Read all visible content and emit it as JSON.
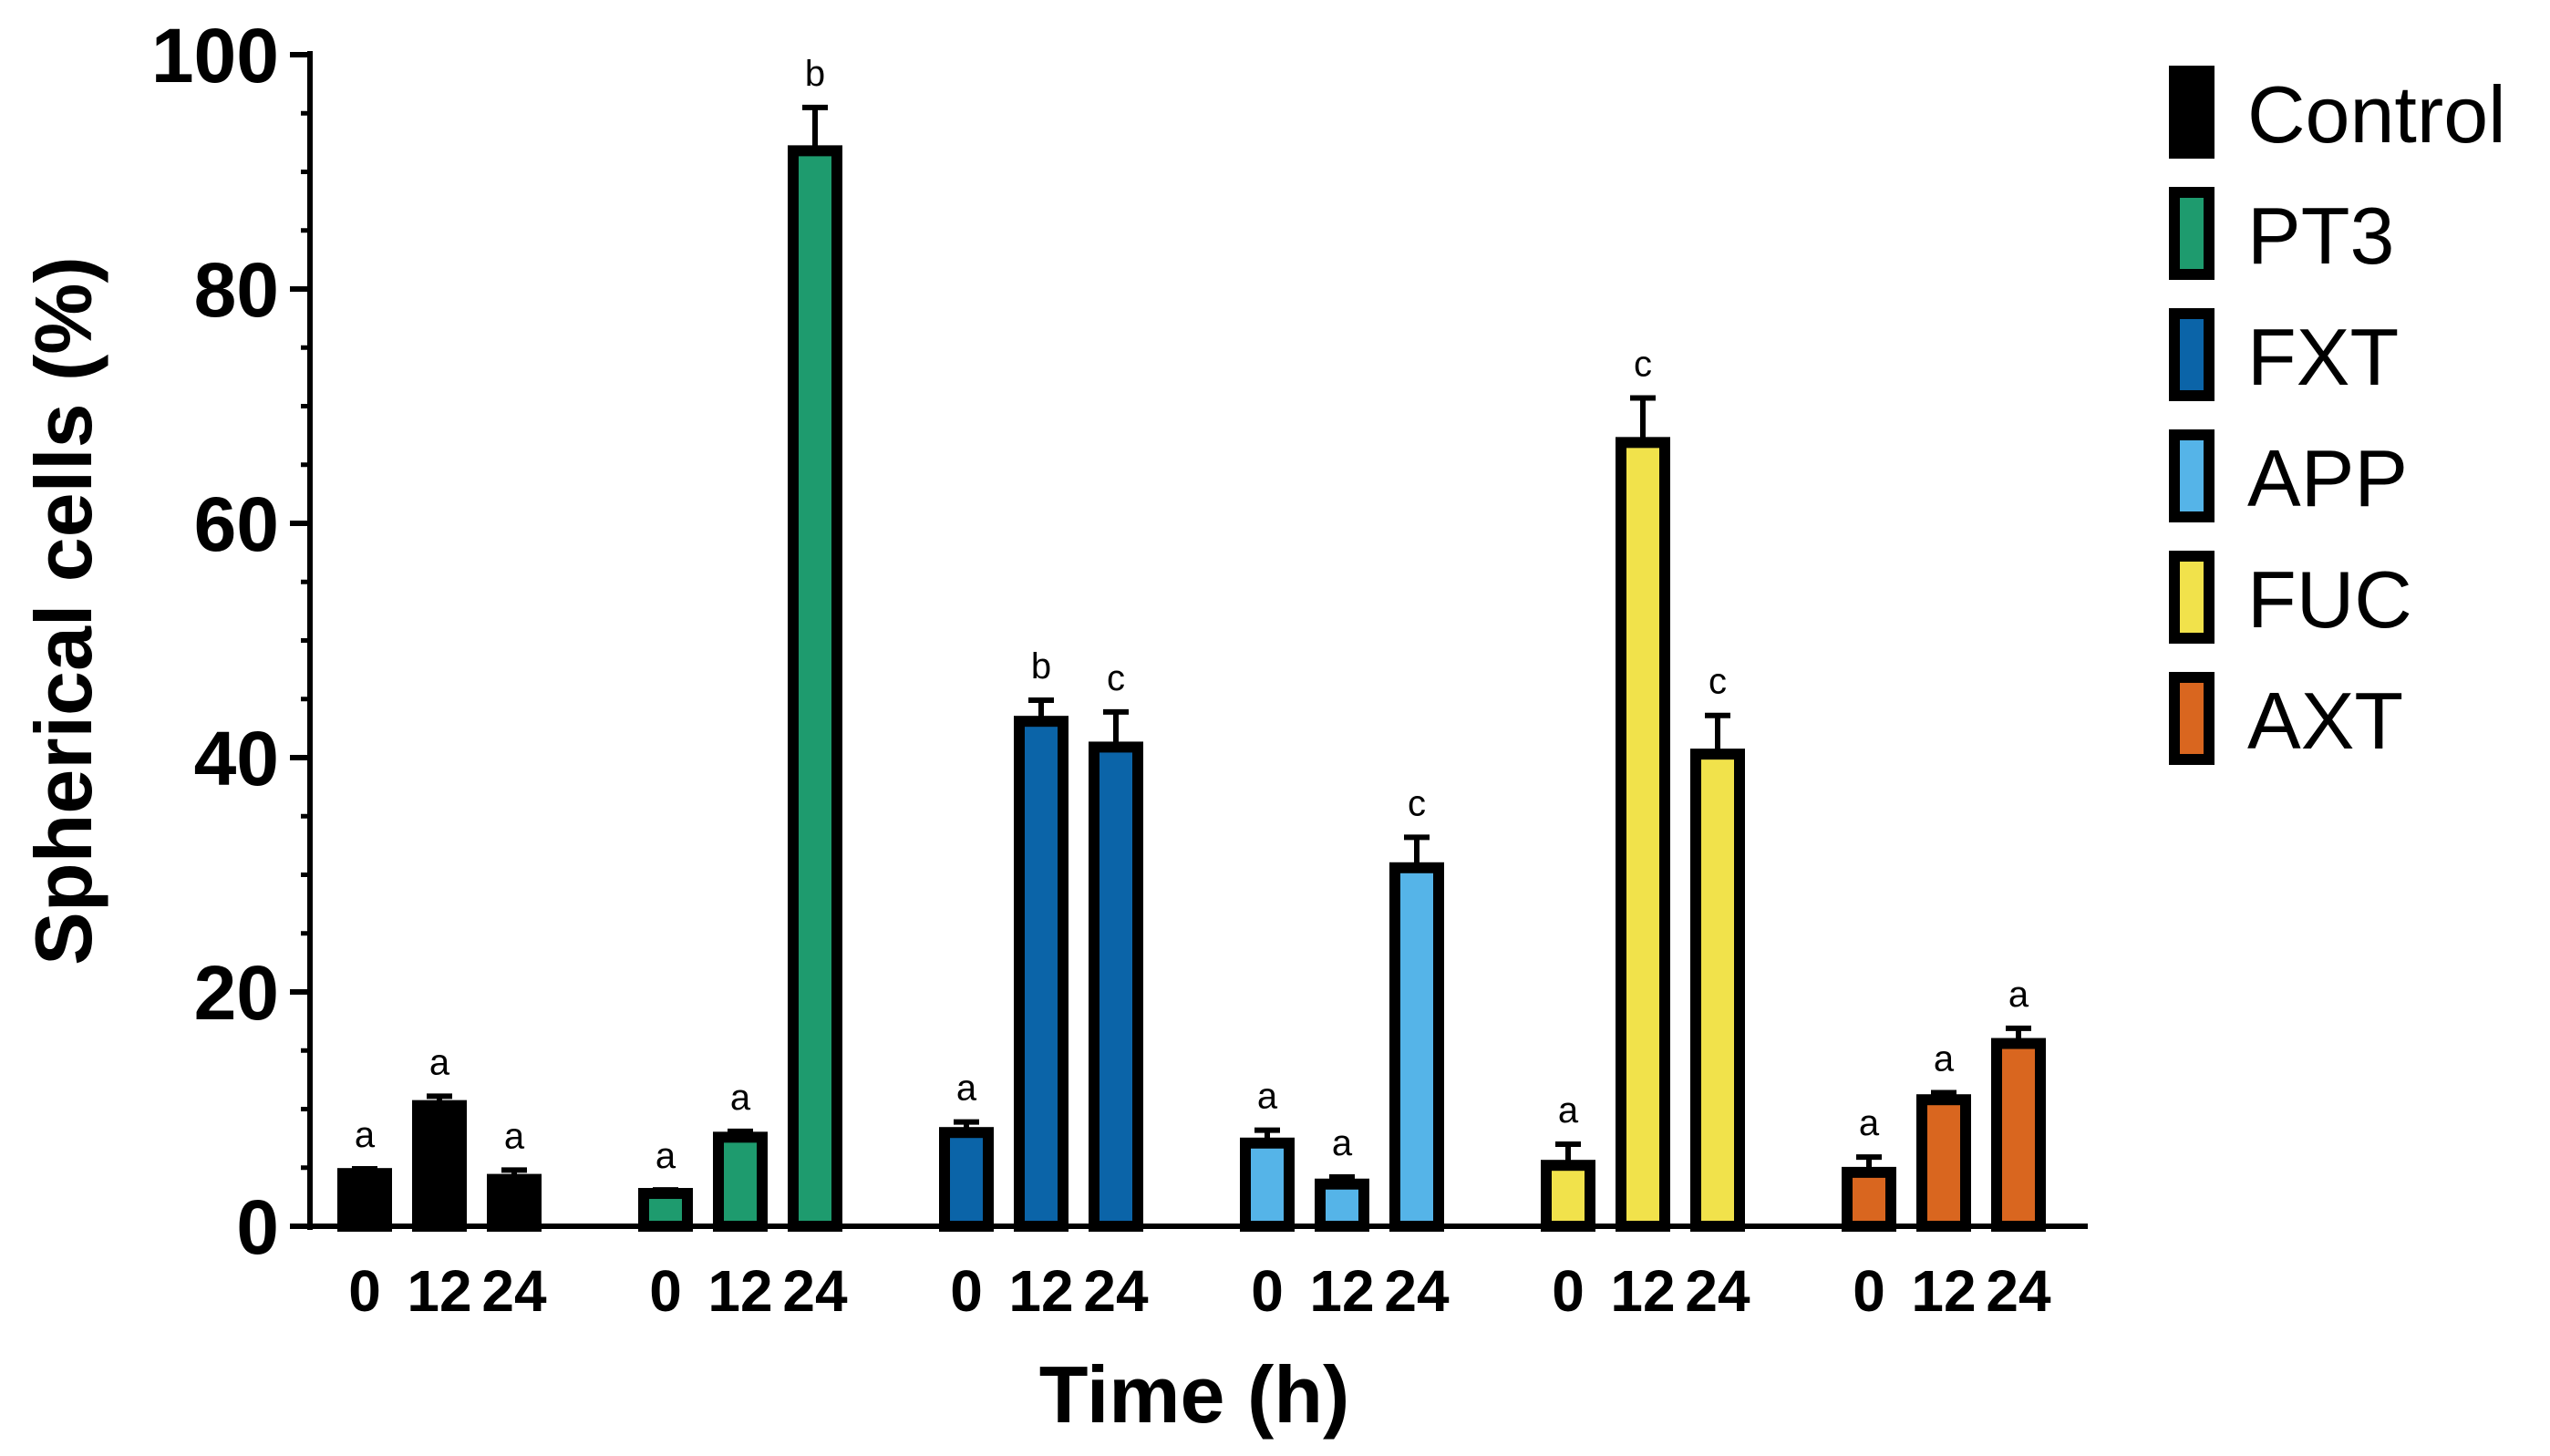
{
  "chart_data": {
    "type": "bar",
    "title": "",
    "xlabel": "Time (h)",
    "ylabel": "Spherical cells  (%)",
    "ylim": [
      0,
      100
    ],
    "yticks": [
      0,
      20,
      40,
      60,
      80,
      100
    ],
    "y_minor_step": 5,
    "grid": false,
    "legend_position": "right",
    "categories": [
      "0",
      "12",
      "24"
    ],
    "series": [
      {
        "name": "Control",
        "color": "#000000",
        "values": [
          4.5,
          10.3,
          4.0
        ],
        "errors": [
          0.4,
          0.8,
          0.8
        ],
        "labels": [
          "a",
          "a",
          "a"
        ]
      },
      {
        "name": "PT3",
        "color": "#1e9b6e",
        "values": [
          2.8,
          7.6,
          91.8
        ],
        "errors": [
          0.3,
          0.5,
          3.7
        ],
        "labels": [
          "a",
          "a",
          "b"
        ]
      },
      {
        "name": "FXT",
        "color": "#0b64a8",
        "values": [
          8.0,
          43.1,
          40.9
        ],
        "errors": [
          0.9,
          1.8,
          3.0
        ],
        "labels": [
          "a",
          "b",
          "c"
        ]
      },
      {
        "name": "APP",
        "color": "#55b4e8",
        "values": [
          7.1,
          3.6,
          30.6
        ],
        "errors": [
          1.1,
          0.6,
          2.6
        ],
        "labels": [
          "a",
          "a",
          "c"
        ]
      },
      {
        "name": "FUC",
        "color": "#f1e24b",
        "values": [
          5.2,
          66.9,
          40.3
        ],
        "errors": [
          1.8,
          3.8,
          3.3
        ],
        "labels": [
          "a",
          "c",
          "c"
        ]
      },
      {
        "name": "AXT",
        "color": "#d9661f",
        "values": [
          4.6,
          10.8,
          15.6
        ],
        "errors": [
          1.3,
          0.6,
          1.3
        ],
        "labels": [
          "a",
          "a",
          "a"
        ]
      }
    ]
  }
}
